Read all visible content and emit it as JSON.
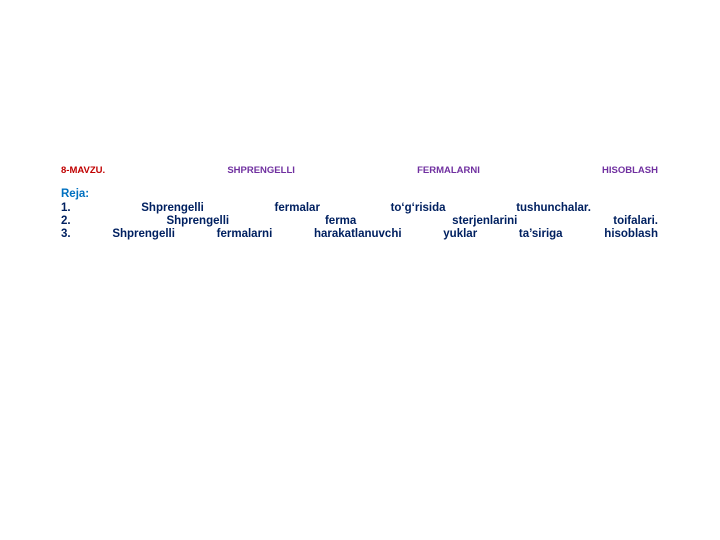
{
  "header": {
    "title_words": [
      "8-MAVZU.",
      "SHPRENGELLI",
      "FERMALARNI",
      "HISOBLASH"
    ]
  },
  "plan": {
    "label": "Reja:",
    "items": [
      {
        "number": "1.",
        "words": [
          "Shprengelli",
          "fermalar",
          "to‘g‘risida",
          "tushunchalar."
        ]
      },
      {
        "number": "2.",
        "words": [
          "Shprengelli",
          "ferma",
          "sterjenlarini",
          "toifalari."
        ]
      },
      {
        "number": "3.",
        "words": [
          "Shprengelli",
          "fermalarni",
          "harakatlanuvchi",
          "yuklar",
          "ta’siriga",
          "hisoblash"
        ]
      }
    ]
  }
}
